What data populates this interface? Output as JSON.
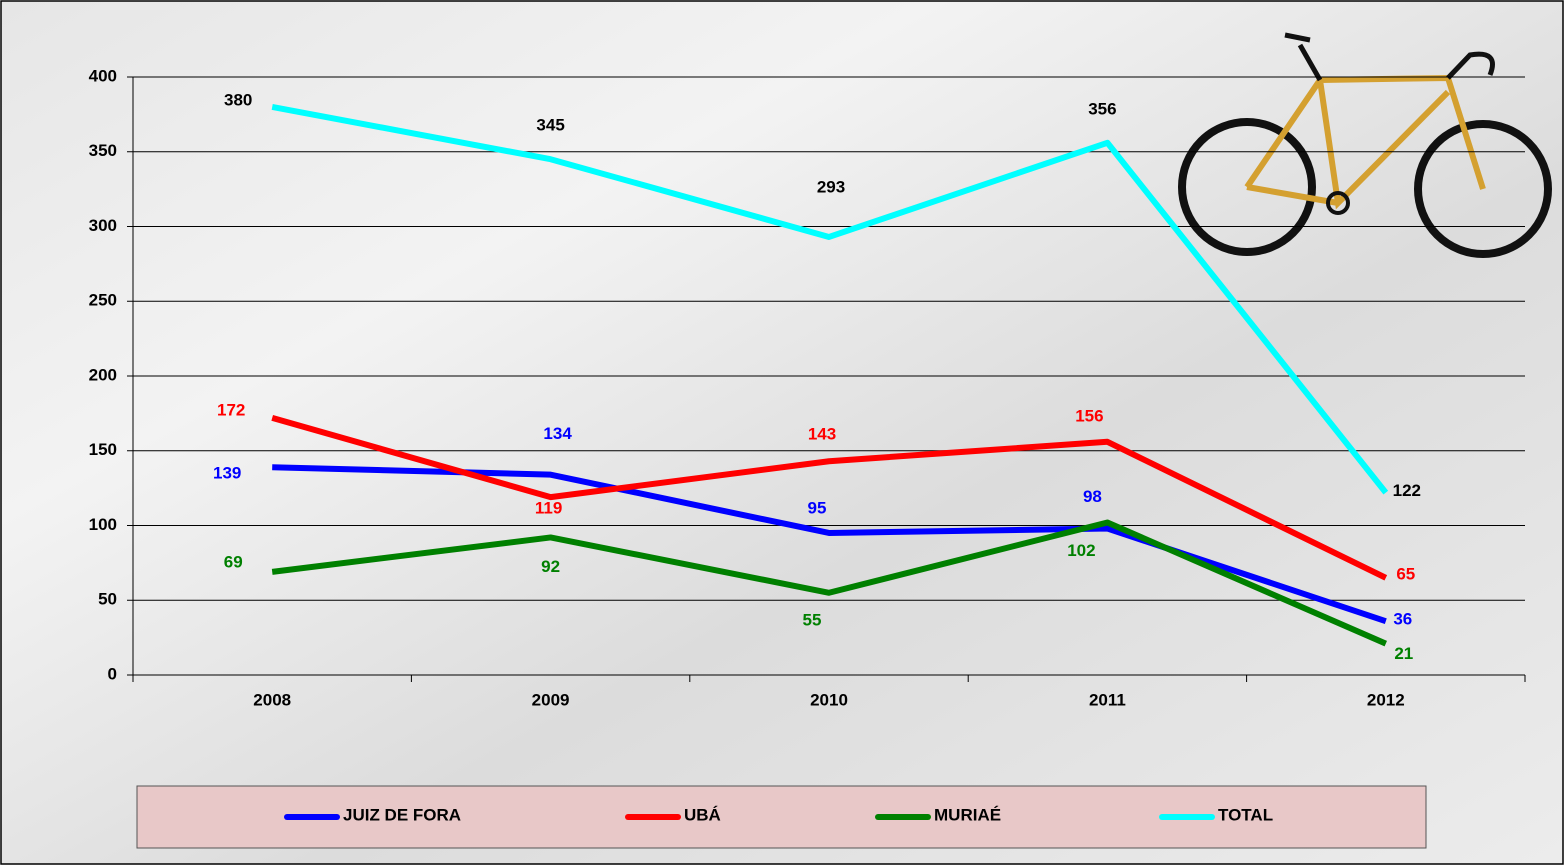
{
  "chart_data": {
    "type": "line",
    "categories": [
      "2008",
      "2009",
      "2010",
      "2011",
      "2012"
    ],
    "series": [
      {
        "name": "JUIZ DE FORA",
        "color": "#0000ff",
        "values": [
          139,
          134,
          95,
          98,
          36
        ]
      },
      {
        "name": "UBÁ",
        "color": "#ff0000",
        "values": [
          172,
          119,
          143,
          156,
          65
        ]
      },
      {
        "name": "MURIAÉ",
        "color": "#008000",
        "values": [
          69,
          92,
          55,
          102,
          21
        ]
      },
      {
        "name": "TOTAL",
        "color": "#00ffff",
        "values": [
          380,
          345,
          293,
          356,
          122
        ]
      }
    ],
    "ylim": [
      0,
      400
    ],
    "yticks": [
      0,
      50,
      100,
      150,
      200,
      250,
      300,
      350,
      400
    ],
    "grid": true,
    "legend": "bottom"
  }
}
